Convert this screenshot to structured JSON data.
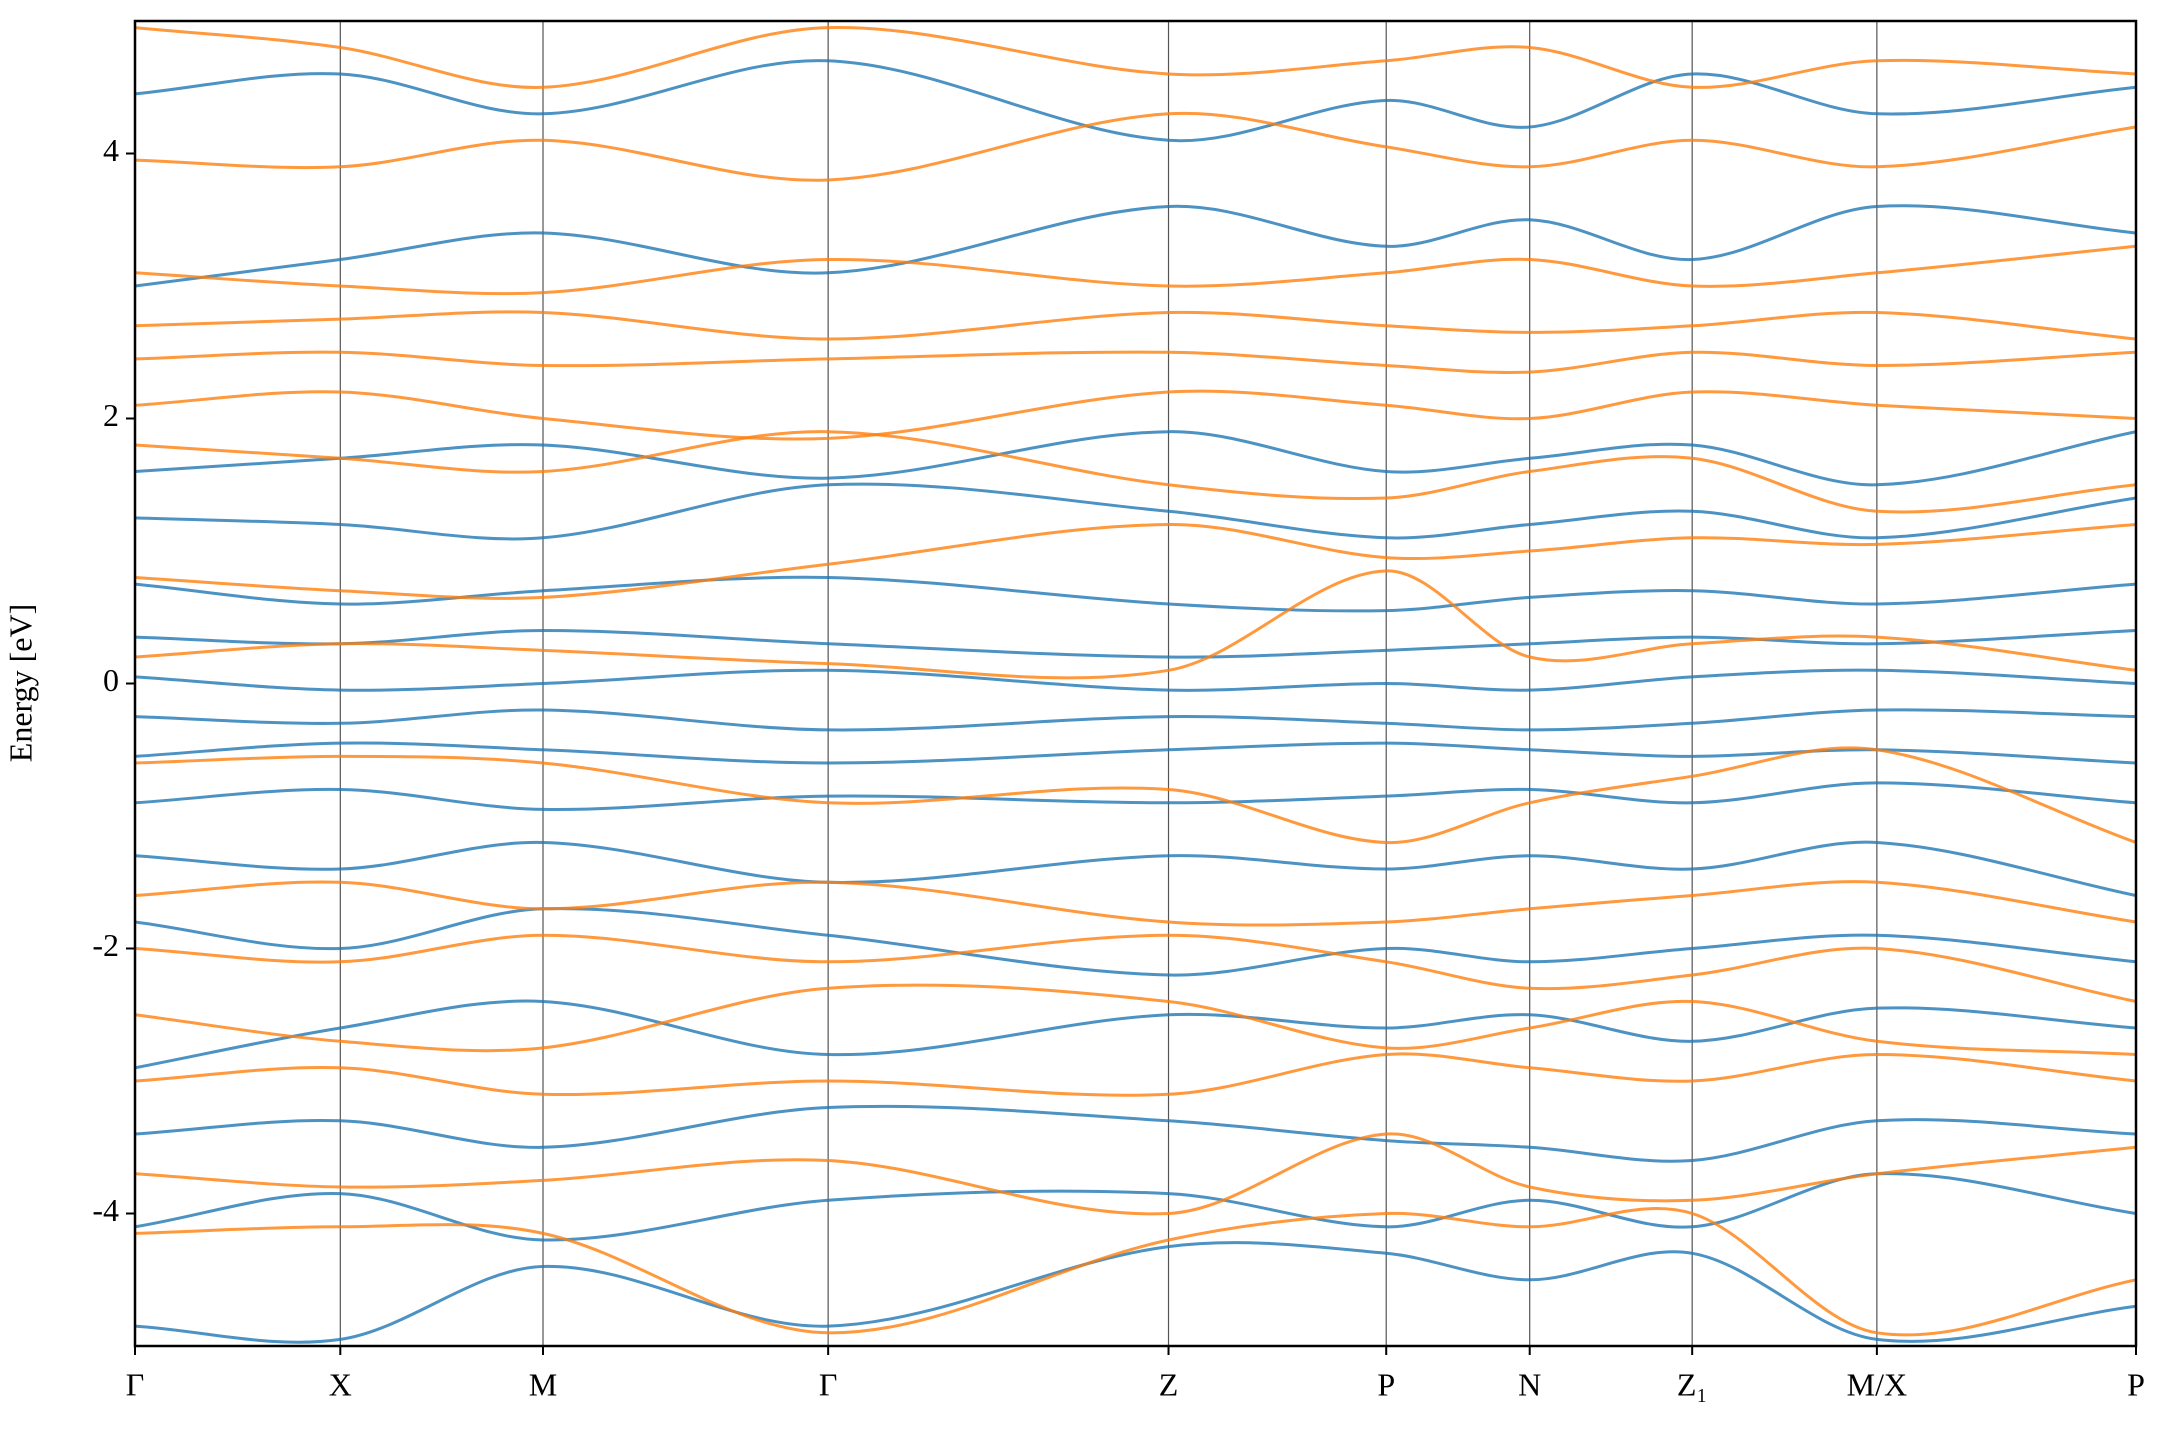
{
  "chart_data": {
    "type": "bandstructure",
    "ylabel": "Energy [eV]",
    "ylim": [
      -5,
      5
    ],
    "yticks": [
      -4,
      -2,
      0,
      2,
      4
    ],
    "xlim": [
      0,
      1
    ],
    "xticks": [
      {
        "value": 0,
        "label": "Γ"
      },
      {
        "value": 0.1026,
        "label": "X"
      },
      {
        "value": 0.2039,
        "label": "M"
      },
      {
        "value": 0.3464,
        "label": "Γ"
      },
      {
        "value": 0.5165,
        "label": "Z"
      },
      {
        "value": 0.6253,
        "label": "P"
      },
      {
        "value": 0.697,
        "label": "N"
      },
      {
        "value": 0.7782,
        "label": "Z₁"
      },
      {
        "value": 0.8705,
        "label": "M/X"
      },
      {
        "value": 1,
        "label": "P"
      }
    ],
    "x": [
      0,
      0.1026,
      0.2039,
      0.3464,
      0.5165,
      0.6253,
      0.697,
      0.7782,
      0.8705,
      1
    ],
    "series": [
      {
        "color": "#1f77b4",
        "values": [
          -4.85,
          -4.95,
          -4.4,
          -4.85,
          -4.25,
          -4.3,
          -4.5,
          -4.3,
          -4.95,
          -4.7
        ]
      },
      {
        "color": "#1f77b4",
        "values": [
          -4.1,
          -3.85,
          -4.2,
          -3.9,
          -3.85,
          -4.1,
          -3.9,
          -4.1,
          -3.7,
          -4.0
        ]
      },
      {
        "color": "#1f77b4",
        "values": [
          -3.4,
          -3.3,
          -3.5,
          -3.2,
          -3.3,
          -3.45,
          -3.5,
          -3.6,
          -3.3,
          -3.4
        ]
      },
      {
        "color": "#1f77b4",
        "values": [
          -2.9,
          -2.6,
          -2.4,
          -2.8,
          -2.5,
          -2.6,
          -2.5,
          -2.7,
          -2.45,
          -2.6
        ]
      },
      {
        "color": "#1f77b4",
        "values": [
          -1.8,
          -2.0,
          -1.7,
          -1.9,
          -2.2,
          -2.0,
          -2.1,
          -2.0,
          -1.9,
          -2.1
        ]
      },
      {
        "color": "#1f77b4",
        "values": [
          -1.3,
          -1.4,
          -1.2,
          -1.5,
          -1.3,
          -1.4,
          -1.3,
          -1.4,
          -1.2,
          -1.6
        ]
      },
      {
        "color": "#1f77b4",
        "values": [
          -0.9,
          -0.8,
          -0.95,
          -0.85,
          -0.9,
          -0.85,
          -0.8,
          -0.9,
          -0.75,
          -0.9
        ]
      },
      {
        "color": "#1f77b4",
        "values": [
          -0.55,
          -0.45,
          -0.5,
          -0.6,
          -0.5,
          -0.45,
          -0.5,
          -0.55,
          -0.5,
          -0.6
        ]
      },
      {
        "color": "#1f77b4",
        "values": [
          -0.25,
          -0.3,
          -0.2,
          -0.35,
          -0.25,
          -0.3,
          -0.35,
          -0.3,
          -0.2,
          -0.25
        ]
      },
      {
        "color": "#1f77b4",
        "values": [
          0.05,
          -0.05,
          0.0,
          0.1,
          -0.05,
          0.0,
          -0.05,
          0.05,
          0.1,
          0.0
        ]
      },
      {
        "color": "#1f77b4",
        "values": [
          0.35,
          0.3,
          0.4,
          0.3,
          0.2,
          0.25,
          0.3,
          0.35,
          0.3,
          0.4
        ]
      },
      {
        "color": "#1f77b4",
        "values": [
          0.75,
          0.6,
          0.7,
          0.8,
          0.6,
          0.55,
          0.65,
          0.7,
          0.6,
          0.75
        ]
      },
      {
        "color": "#1f77b4",
        "values": [
          1.25,
          1.2,
          1.1,
          1.5,
          1.3,
          1.1,
          1.2,
          1.3,
          1.1,
          1.4
        ]
      },
      {
        "color": "#1f77b4",
        "values": [
          1.6,
          1.7,
          1.8,
          1.55,
          1.9,
          1.6,
          1.7,
          1.8,
          1.5,
          1.9
        ]
      },
      {
        "color": "#1f77b4",
        "values": [
          3.0,
          3.2,
          3.4,
          3.1,
          3.6,
          3.3,
          3.5,
          3.2,
          3.6,
          3.4
        ]
      },
      {
        "color": "#1f77b4",
        "values": [
          4.45,
          4.6,
          4.3,
          4.7,
          4.1,
          4.4,
          4.2,
          4.6,
          4.3,
          4.5
        ]
      },
      {
        "color": "#ff7f0e",
        "values": [
          -4.15,
          -4.1,
          -4.15,
          -4.9,
          -4.2,
          -4.0,
          -4.1,
          -4.0,
          -4.9,
          -4.5
        ]
      },
      {
        "color": "#ff7f0e",
        "values": [
          -3.7,
          -3.8,
          -3.75,
          -3.6,
          -4.0,
          -3.4,
          -3.8,
          -3.9,
          -3.7,
          -3.5
        ]
      },
      {
        "color": "#ff7f0e",
        "values": [
          -3.0,
          -2.9,
          -3.1,
          -3.0,
          -3.1,
          -2.8,
          -2.9,
          -3.0,
          -2.8,
          -3.0
        ]
      },
      {
        "color": "#ff7f0e",
        "values": [
          -2.5,
          -2.7,
          -2.75,
          -2.3,
          -2.4,
          -2.75,
          -2.6,
          -2.4,
          -2.7,
          -2.8
        ]
      },
      {
        "color": "#ff7f0e",
        "values": [
          -2.0,
          -2.1,
          -1.9,
          -2.1,
          -1.9,
          -2.1,
          -2.3,
          -2.2,
          -2.0,
          -2.4
        ]
      },
      {
        "color": "#ff7f0e",
        "values": [
          -1.6,
          -1.5,
          -1.7,
          -1.5,
          -1.8,
          -1.8,
          -1.7,
          -1.6,
          -1.5,
          -1.8
        ]
      },
      {
        "color": "#ff7f0e",
        "values": [
          -0.6,
          -0.55,
          -0.6,
          -0.9,
          -0.8,
          -1.2,
          -0.9,
          -0.7,
          -0.5,
          -1.2
        ]
      },
      {
        "color": "#ff7f0e",
        "values": [
          0.2,
          0.3,
          0.25,
          0.15,
          0.1,
          0.85,
          0.2,
          0.3,
          0.35,
          0.1
        ]
      },
      {
        "color": "#ff7f0e",
        "values": [
          0.8,
          0.7,
          0.65,
          0.9,
          1.2,
          0.95,
          1.0,
          1.1,
          1.05,
          1.2
        ]
      },
      {
        "color": "#ff7f0e",
        "values": [
          1.8,
          1.7,
          1.6,
          1.9,
          1.5,
          1.4,
          1.6,
          1.7,
          1.3,
          1.5
        ]
      },
      {
        "color": "#ff7f0e",
        "values": [
          2.1,
          2.2,
          2.0,
          1.85,
          2.2,
          2.1,
          2.0,
          2.2,
          2.1,
          2.0
        ]
      },
      {
        "color": "#ff7f0e",
        "values": [
          2.45,
          2.5,
          2.4,
          2.45,
          2.5,
          2.4,
          2.35,
          2.5,
          2.4,
          2.5
        ]
      },
      {
        "color": "#ff7f0e",
        "values": [
          2.7,
          2.75,
          2.8,
          2.6,
          2.8,
          2.7,
          2.65,
          2.7,
          2.8,
          2.6
        ]
      },
      {
        "color": "#ff7f0e",
        "values": [
          3.1,
          3.0,
          2.95,
          3.2,
          3.0,
          3.1,
          3.2,
          3.0,
          3.1,
          3.3
        ]
      },
      {
        "color": "#ff7f0e",
        "values": [
          3.95,
          3.9,
          4.1,
          3.8,
          4.3,
          4.05,
          3.9,
          4.1,
          3.9,
          4.2
        ]
      },
      {
        "color": "#ff7f0e",
        "values": [
          4.95,
          4.8,
          4.5,
          4.95,
          4.6,
          4.7,
          4.8,
          4.5,
          4.7,
          4.6
        ]
      }
    ]
  }
}
